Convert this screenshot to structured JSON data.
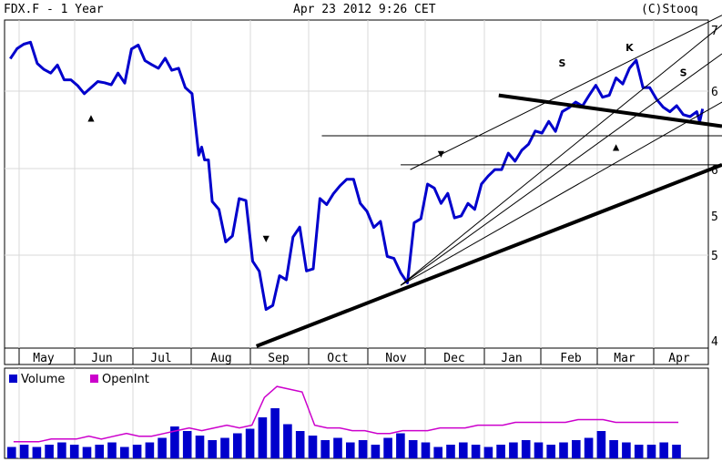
{
  "header": {
    "left": "FDX.F - 1 Year",
    "center": "Apr 23 2012 9:26 CET",
    "right": "(C)Stooq"
  },
  "colors": {
    "price": "#0000cc",
    "volume": "#0000cc",
    "openint": "#cc00cc",
    "grid": "#d8d8d8",
    "trend": "#000000"
  },
  "chart_data": [
    {
      "type": "line",
      "title": "FDX.F - 1 Year",
      "x_axis": [
        "May",
        "Jun",
        "Jul",
        "Aug",
        "Sep",
        "Oct",
        "Nov",
        "Dec",
        "Jan",
        "Feb",
        "Mar",
        "Apr"
      ],
      "y_ticks": [
        "7",
        "6",
        "6",
        "5",
        "5",
        "4"
      ],
      "ylim": [
        4.0,
        7.4
      ],
      "grid": true,
      "series": [
        {
          "x": [
            "2011-04-26",
            "2011-05-03",
            "2011-05-10",
            "2011-05-17",
            "2011-05-24",
            "2011-05-31",
            "2011-06-07",
            "2011-06-14",
            "2011-06-21",
            "2011-06-28",
            "2011-07-05",
            "2011-07-12",
            "2011-07-19",
            "2011-07-26",
            "2011-08-02",
            "2011-08-05",
            "2011-08-09",
            "2011-08-16",
            "2011-08-23",
            "2011-08-30",
            "2011-09-06",
            "2011-09-13",
            "2011-09-20",
            "2011-09-27",
            "2011-10-04",
            "2011-10-11",
            "2011-10-18",
            "2011-10-25",
            "2011-11-01",
            "2011-11-08",
            "2011-11-15",
            "2011-11-22",
            "2011-11-29",
            "2011-12-06",
            "2011-12-13",
            "2011-12-20",
            "2011-12-27",
            "2012-01-03",
            "2012-01-10",
            "2012-01-17",
            "2012-01-24",
            "2012-01-31",
            "2012-02-07",
            "2012-02-14",
            "2012-02-21",
            "2012-02-28",
            "2012-03-06",
            "2012-03-13",
            "2012-03-20",
            "2012-03-27",
            "2012-04-03",
            "2012-04-10",
            "2012-04-17",
            "2012-04-20"
          ],
          "values": [
            7.0,
            7.15,
            6.95,
            6.85,
            6.78,
            6.72,
            6.7,
            6.75,
            6.85,
            7.1,
            6.98,
            6.9,
            6.88,
            6.7,
            6.0,
            5.95,
            5.52,
            5.1,
            5.55,
            4.9,
            4.4,
            4.75,
            5.15,
            4.8,
            5.55,
            5.6,
            5.75,
            5.5,
            5.25,
            4.95,
            4.78,
            5.3,
            5.7,
            5.5,
            5.35,
            5.5,
            5.7,
            5.85,
            6.02,
            6.05,
            6.25,
            6.35,
            6.45,
            6.55,
            6.62,
            6.6,
            6.8,
            6.9,
            6.7,
            6.58,
            6.45,
            6.42,
            6.45,
            6.48
          ]
        }
      ],
      "annotations": [
        {
          "text": "S",
          "date": "2012-02-07",
          "value": 6.92
        },
        {
          "text": "K",
          "date": "2012-03-13",
          "value": 7.08
        },
        {
          "text": "S",
          "date": "2012-04-10",
          "value": 6.82
        }
      ],
      "markers": [
        {
          "symbol": "▲",
          "date": "2011-06-07",
          "value": 6.35
        },
        {
          "symbol": "▼",
          "date": "2011-09-06",
          "value": 5.1
        },
        {
          "symbol": "▼",
          "date": "2011-12-06",
          "value": 5.98
        },
        {
          "symbol": "▲",
          "date": "2012-03-06",
          "value": 6.05
        }
      ],
      "trendlines": [
        {
          "style": "thick",
          "from": {
            "date": "2011-09-01",
            "value": 4.02
          },
          "to": {
            "date": "2012-04-23",
            "value": 5.9
          }
        },
        {
          "style": "thick",
          "from": {
            "date": "2012-01-05",
            "value": 6.62
          },
          "to": {
            "date": "2012-04-23",
            "value": 6.3
          }
        },
        {
          "style": "thin",
          "from": {
            "date": "2011-11-15",
            "value": 4.65
          },
          "to": {
            "date": "2012-04-23",
            "value": 7.35
          }
        },
        {
          "style": "thin",
          "from": {
            "date": "2011-11-15",
            "value": 4.65
          },
          "to": {
            "date": "2012-04-23",
            "value": 7.05
          }
        },
        {
          "style": "thin",
          "from": {
            "date": "2011-11-15",
            "value": 4.65
          },
          "to": {
            "date": "2012-04-23",
            "value": 6.55
          }
        },
        {
          "style": "thin",
          "from": {
            "date": "2011-11-20",
            "value": 5.85
          },
          "to": {
            "date": "2012-04-23",
            "value": 7.45
          }
        },
        {
          "style": "thin",
          "from": {
            "date": "2011-10-05",
            "value": 6.2
          },
          "to": {
            "date": "2012-04-23",
            "value": 6.2
          }
        },
        {
          "style": "thin",
          "from": {
            "date": "2011-11-15",
            "value": 5.9
          },
          "to": {
            "date": "2012-04-23",
            "value": 5.9
          }
        }
      ]
    },
    {
      "type": "bar",
      "legend": [
        "Volume",
        "OpenInt"
      ],
      "series": [
        {
          "name": "Volume",
          "values": [
            5,
            6,
            5,
            6,
            7,
            6,
            5,
            6,
            7,
            5,
            6,
            7,
            9,
            14,
            12,
            10,
            8,
            9,
            11,
            13,
            18,
            22,
            15,
            12,
            10,
            8,
            9,
            7,
            8,
            6,
            9,
            11,
            8,
            7,
            5,
            6,
            7,
            6,
            5,
            6,
            7,
            8,
            7,
            6,
            7,
            8,
            9,
            12,
            8,
            7,
            6,
            6,
            7,
            6
          ]
        },
        {
          "name": "OpenInt",
          "values": [
            6,
            6,
            6,
            7,
            7,
            7,
            8,
            7,
            8,
            9,
            8,
            8,
            9,
            10,
            11,
            10,
            11,
            12,
            11,
            12,
            22,
            26,
            25,
            24,
            12,
            11,
            11,
            10,
            10,
            9,
            9,
            10,
            10,
            10,
            11,
            11,
            11,
            12,
            12,
            12,
            13,
            13,
            13,
            13,
            13,
            14,
            14,
            14,
            13,
            13,
            13,
            13,
            13,
            13
          ]
        }
      ]
    }
  ]
}
